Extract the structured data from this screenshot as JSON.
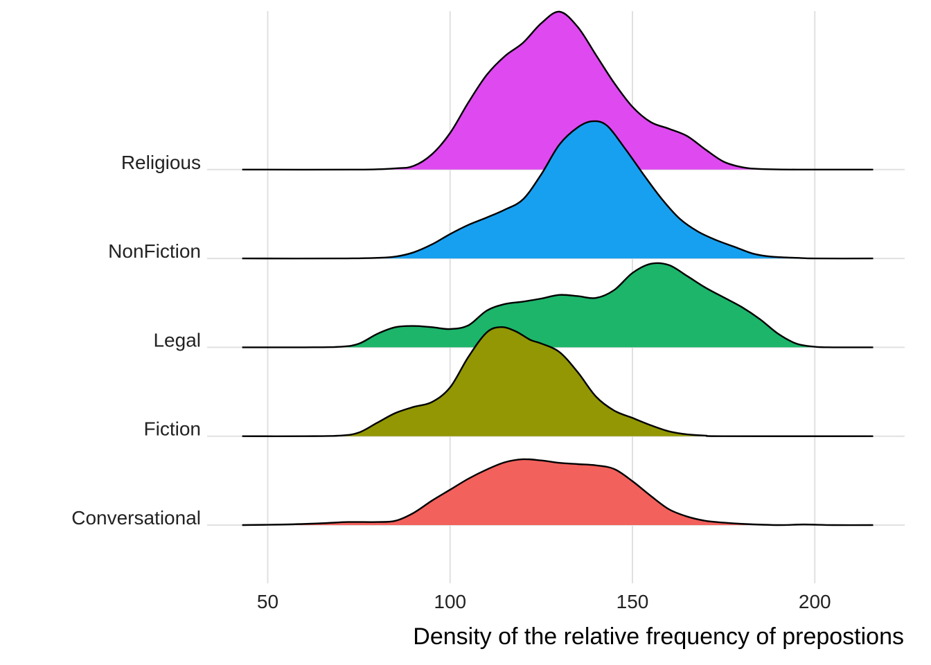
{
  "chart_data": {
    "type": "area",
    "subtype": "ridgeline-density",
    "xlabel": "Density of the relative frequency of prepostions",
    "ylabel": "",
    "xlim": [
      43,
      216
    ],
    "xticks": [
      50,
      100,
      150,
      200
    ],
    "grid": true,
    "legend": "none",
    "categories": [
      "Conversational",
      "Fiction",
      "Legal",
      "NonFiction",
      "Religious"
    ],
    "series": [
      {
        "name": "Conversational",
        "color": "#F2615C",
        "points": [
          [
            43,
            0.0
          ],
          [
            55,
            0.01
          ],
          [
            65,
            0.03
          ],
          [
            72,
            0.05
          ],
          [
            80,
            0.05
          ],
          [
            85,
            0.07
          ],
          [
            90,
            0.2
          ],
          [
            95,
            0.4
          ],
          [
            100,
            0.58
          ],
          [
            105,
            0.76
          ],
          [
            110,
            0.91
          ],
          [
            115,
            1.03
          ],
          [
            120,
            1.08
          ],
          [
            125,
            1.06
          ],
          [
            130,
            1.02
          ],
          [
            135,
            1.0
          ],
          [
            140,
            0.98
          ],
          [
            145,
            0.92
          ],
          [
            150,
            0.72
          ],
          [
            155,
            0.48
          ],
          [
            160,
            0.26
          ],
          [
            165,
            0.14
          ],
          [
            170,
            0.07
          ],
          [
            175,
            0.04
          ],
          [
            180,
            0.02
          ],
          [
            190,
            0.0
          ],
          [
            197,
            0.01
          ],
          [
            205,
            0.0
          ],
          [
            216,
            0.0
          ]
        ]
      },
      {
        "name": "Fiction",
        "color": "#929703",
        "points": [
          [
            43,
            0.0
          ],
          [
            60,
            0.0
          ],
          [
            70,
            0.01
          ],
          [
            75,
            0.06
          ],
          [
            80,
            0.22
          ],
          [
            85,
            0.38
          ],
          [
            90,
            0.48
          ],
          [
            95,
            0.56
          ],
          [
            100,
            0.8
          ],
          [
            105,
            1.3
          ],
          [
            110,
            1.7
          ],
          [
            114,
            1.79
          ],
          [
            118,
            1.72
          ],
          [
            122,
            1.58
          ],
          [
            125,
            1.52
          ],
          [
            130,
            1.38
          ],
          [
            135,
            1.05
          ],
          [
            140,
            0.65
          ],
          [
            145,
            0.42
          ],
          [
            150,
            0.3
          ],
          [
            155,
            0.18
          ],
          [
            160,
            0.08
          ],
          [
            165,
            0.03
          ],
          [
            170,
            0.01
          ],
          [
            175,
            0.0
          ],
          [
            216,
            0.0
          ]
        ]
      },
      {
        "name": "Legal",
        "color": "#1CB56A",
        "points": [
          [
            43,
            0.0
          ],
          [
            60,
            0.0
          ],
          [
            70,
            0.01
          ],
          [
            75,
            0.06
          ],
          [
            80,
            0.22
          ],
          [
            85,
            0.33
          ],
          [
            90,
            0.35
          ],
          [
            95,
            0.33
          ],
          [
            100,
            0.3
          ],
          [
            105,
            0.36
          ],
          [
            110,
            0.6
          ],
          [
            115,
            0.71
          ],
          [
            120,
            0.75
          ],
          [
            125,
            0.8
          ],
          [
            130,
            0.86
          ],
          [
            135,
            0.84
          ],
          [
            140,
            0.81
          ],
          [
            145,
            0.94
          ],
          [
            150,
            1.22
          ],
          [
            155,
            1.37
          ],
          [
            160,
            1.35
          ],
          [
            165,
            1.17
          ],
          [
            170,
            0.98
          ],
          [
            175,
            0.82
          ],
          [
            180,
            0.66
          ],
          [
            185,
            0.46
          ],
          [
            190,
            0.22
          ],
          [
            195,
            0.06
          ],
          [
            200,
            0.01
          ],
          [
            205,
            0.0
          ],
          [
            216,
            0.0
          ]
        ]
      },
      {
        "name": "NonFiction",
        "color": "#18A0F0",
        "points": [
          [
            43,
            0.0
          ],
          [
            70,
            0.0
          ],
          [
            80,
            0.01
          ],
          [
            85,
            0.03
          ],
          [
            90,
            0.1
          ],
          [
            95,
            0.23
          ],
          [
            100,
            0.4
          ],
          [
            105,
            0.55
          ],
          [
            110,
            0.67
          ],
          [
            115,
            0.8
          ],
          [
            120,
            0.97
          ],
          [
            125,
            1.38
          ],
          [
            130,
            1.87
          ],
          [
            135,
            2.15
          ],
          [
            139,
            2.25
          ],
          [
            143,
            2.18
          ],
          [
            148,
            1.8
          ],
          [
            153,
            1.38
          ],
          [
            158,
            0.98
          ],
          [
            163,
            0.65
          ],
          [
            168,
            0.44
          ],
          [
            173,
            0.3
          ],
          [
            178,
            0.19
          ],
          [
            183,
            0.08
          ],
          [
            188,
            0.03
          ],
          [
            195,
            0.01
          ],
          [
            200,
            0.0
          ],
          [
            216,
            0.0
          ]
        ]
      },
      {
        "name": "Religious",
        "color": "#DE49F0",
        "points": [
          [
            43,
            0.0
          ],
          [
            75,
            0.0
          ],
          [
            85,
            0.02
          ],
          [
            90,
            0.06
          ],
          [
            95,
            0.25
          ],
          [
            100,
            0.6
          ],
          [
            105,
            1.1
          ],
          [
            110,
            1.55
          ],
          [
            115,
            1.86
          ],
          [
            120,
            2.08
          ],
          [
            125,
            2.4
          ],
          [
            130,
            2.59
          ],
          [
            135,
            2.34
          ],
          [
            140,
            1.88
          ],
          [
            145,
            1.42
          ],
          [
            150,
            1.03
          ],
          [
            155,
            0.78
          ],
          [
            160,
            0.67
          ],
          [
            165,
            0.55
          ],
          [
            170,
            0.33
          ],
          [
            175,
            0.13
          ],
          [
            180,
            0.04
          ],
          [
            185,
            0.01
          ],
          [
            195,
            0.0
          ],
          [
            216,
            0.0
          ]
        ]
      }
    ]
  }
}
